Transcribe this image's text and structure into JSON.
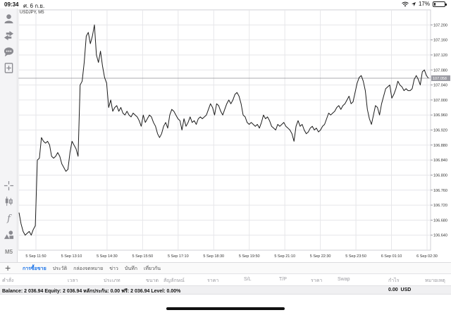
{
  "status": {
    "time": "09:34",
    "date": "ศ. 6 ก.ย.",
    "battery": "17%",
    "battery_level": 0.17
  },
  "sidebar": {
    "icons": [
      "user-icon",
      "trade-arrows-icon",
      "chat-icon",
      "new-order-icon",
      "crosshair-icon",
      "candles-icon",
      "function-icon",
      "objects-icon"
    ],
    "timeframe": "M5"
  },
  "chart": {
    "symbol_label": "USDJPY, M5",
    "current_price_label": "107.058",
    "grid_color": "#e6e6ea",
    "line_color": "#1c1c1c",
    "price_line_color": "#8f8f95"
  },
  "chart_data": {
    "type": "line",
    "title": "USDJPY, M5",
    "xlabel": "",
    "ylabel": "",
    "ylim": [
      106.6,
      107.24
    ],
    "y_ticks": [
      "107.200",
      "107.160",
      "107.120",
      "107.080",
      "107.040",
      "107.000",
      "106.960",
      "106.920",
      "106.880",
      "106.840",
      "106.800",
      "106.760",
      "106.720",
      "106.680",
      "106.640"
    ],
    "x_ticks": [
      "5 Sep 11:50",
      "5 Sep 13:10",
      "5 Sep 14:30",
      "5 Sep 15:50",
      "5 Sep 17:10",
      "5 Sep 18:30",
      "5 Sep 19:50",
      "5 Sep 21:10",
      "5 Sep 22:30",
      "5 Sep 23:50",
      "6 Sep 01:10",
      "6 Sep 02:30"
    ],
    "current_price": 107.058,
    "grid": true,
    "series": [
      {
        "values": [
          106.7,
          106.67,
          106.65,
          106.64,
          106.645,
          106.65,
          106.64,
          106.655,
          106.665,
          106.84,
          106.845,
          106.9,
          106.89,
          106.885,
          106.89,
          106.88,
          106.85,
          106.845,
          106.85,
          106.86,
          106.85,
          106.83,
          106.82,
          106.81,
          106.815,
          106.86,
          106.89,
          106.88,
          106.87,
          106.85,
          107.04,
          107.05,
          107.1,
          107.17,
          107.18,
          107.15,
          107.17,
          107.2,
          107.12,
          107.1,
          107.13,
          107.09,
          107.06,
          107.045,
          106.98,
          107.0,
          106.97,
          106.98,
          106.985,
          106.97,
          106.98,
          106.965,
          106.96,
          106.97,
          106.96,
          106.955,
          106.965,
          106.96,
          106.955,
          106.945,
          106.93,
          106.96,
          106.94,
          106.95,
          106.96,
          106.955,
          106.94,
          106.93,
          106.91,
          106.9,
          106.91,
          106.93,
          106.94,
          106.925,
          106.96,
          106.975,
          106.97,
          106.96,
          106.95,
          106.945,
          106.92,
          106.95,
          106.93,
          106.94,
          106.955,
          106.94,
          106.945,
          106.935,
          106.95,
          106.955,
          106.95,
          106.955,
          106.96,
          106.975,
          106.99,
          106.98,
          106.96,
          106.99,
          106.985,
          106.97,
          106.96,
          106.975,
          106.99,
          107.0,
          106.99,
          107.0,
          107.015,
          107.02,
          107.01,
          106.99,
          106.96,
          106.955,
          106.94,
          106.935,
          106.94,
          106.935,
          106.93,
          106.935,
          106.925,
          106.94,
          106.96,
          106.95,
          106.955,
          106.945,
          106.93,
          106.925,
          106.92,
          106.935,
          106.93,
          106.935,
          106.94,
          106.93,
          106.925,
          106.92,
          106.91,
          106.89,
          106.93,
          106.945,
          106.93,
          106.935,
          106.92,
          106.91,
          106.915,
          106.925,
          106.93,
          106.92,
          106.925,
          106.915,
          106.92,
          106.93,
          106.935,
          106.95,
          106.965,
          106.96,
          106.965,
          106.97,
          106.98,
          106.985,
          106.975,
          106.985,
          106.99,
          107.0,
          107.01,
          106.99,
          106.995,
          107.02,
          107.045,
          107.06,
          107.065,
          107.05,
          107.025,
          106.975,
          106.95,
          106.935,
          106.96,
          106.985,
          106.98,
          106.96,
          106.99,
          107.01,
          107.03,
          107.035,
          107.04,
          107.005,
          107.015,
          107.03,
          107.05,
          107.04,
          107.035,
          107.025,
          107.03,
          107.025,
          107.025,
          107.03,
          107.055,
          107.065,
          107.055,
          107.04,
          107.075,
          107.08,
          107.065,
          107.058
        ]
      }
    ]
  },
  "tabs": [
    "การซื้อขาย",
    "ประวัติ",
    "กล่องจดหมาย",
    "ข่าว",
    "บันทึก",
    "เที่ยวกัน"
  ],
  "table_headers": [
    "คำสั่ง",
    "เวลา",
    "ประเภท",
    "ขนาด",
    "สัญลักษณ์",
    "ราคา",
    "S/L",
    "T/P",
    "ราคา",
    "Swap",
    "กำไร",
    "หมายเหตุ"
  ],
  "balance": {
    "summary": "Balance: 2 036.94  Equity: 2 036.94  หลักประกัน: 0.00  ฟรี: 2 036.94  Level: 0.00%",
    "profit": "0.00",
    "currency": "USD"
  }
}
